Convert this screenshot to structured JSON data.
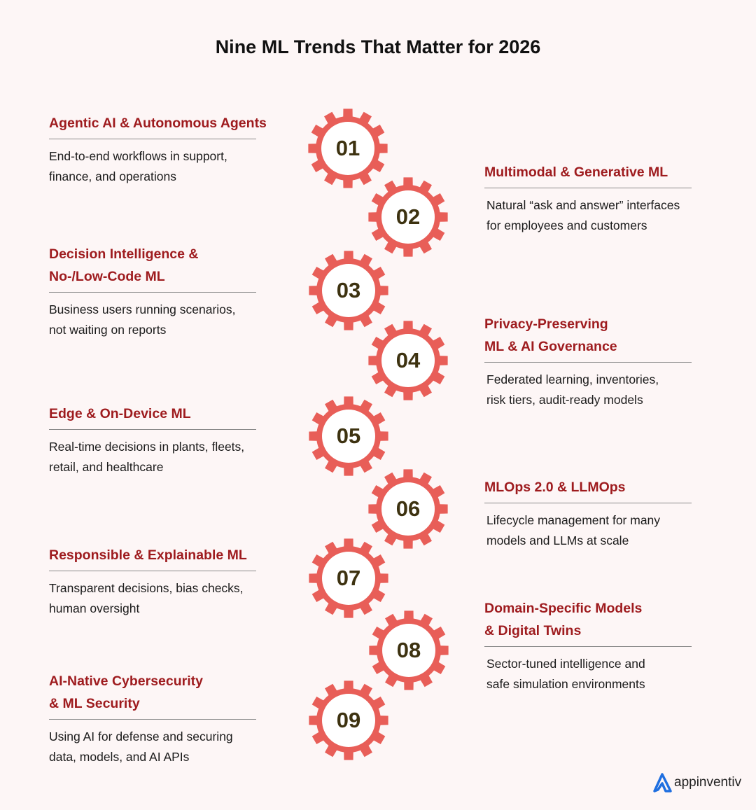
{
  "title": "Nine ML Trends That Matter for 2026",
  "colors": {
    "gear": "#e85e58",
    "heading": "#9e1b1e",
    "number": "#3d3210",
    "logo": "#1f6fe0"
  },
  "trends": [
    {
      "number": "01",
      "heading": [
        "Agentic AI & Autonomous Agents"
      ],
      "description": [
        "End-to-end workflows in support,",
        "finance, and operations"
      ]
    },
    {
      "number": "02",
      "heading": [
        "Multimodal & Generative ML"
      ],
      "description": [
        "Natural “ask and answer” interfaces",
        "for employees and customers"
      ]
    },
    {
      "number": "03",
      "heading": [
        "Decision Intelligence &",
        "No-/Low-Code ML"
      ],
      "description": [
        "Business users running scenarios,",
        "not waiting on reports"
      ]
    },
    {
      "number": "04",
      "heading": [
        "Privacy-Preserving",
        "ML & AI Governance"
      ],
      "description": [
        "Federated learning, inventories,",
        "risk tiers, audit-ready models"
      ]
    },
    {
      "number": "05",
      "heading": [
        "Edge & On-Device ML"
      ],
      "description": [
        "Real-time decisions in plants, fleets,",
        "retail, and healthcare"
      ]
    },
    {
      "number": "06",
      "heading": [
        "MLOps 2.0 & LLMOps"
      ],
      "description": [
        "Lifecycle management for many",
        "models and LLMs at scale"
      ]
    },
    {
      "number": "07",
      "heading": [
        "Responsible & Explainable ML"
      ],
      "description": [
        "Transparent decisions, bias checks,",
        "human oversight"
      ]
    },
    {
      "number": "08",
      "heading": [
        "Domain-Specific Models",
        "& Digital Twins"
      ],
      "description": [
        "Sector-tuned intelligence and",
        "safe simulation environments"
      ]
    },
    {
      "number": "09",
      "heading": [
        "AI-Native Cybersecurity",
        "& ML Security"
      ],
      "description": [
        "Using AI for defense and securing",
        "data, models, and AI APIs"
      ]
    }
  ],
  "logo": {
    "text": "appinventiv"
  }
}
